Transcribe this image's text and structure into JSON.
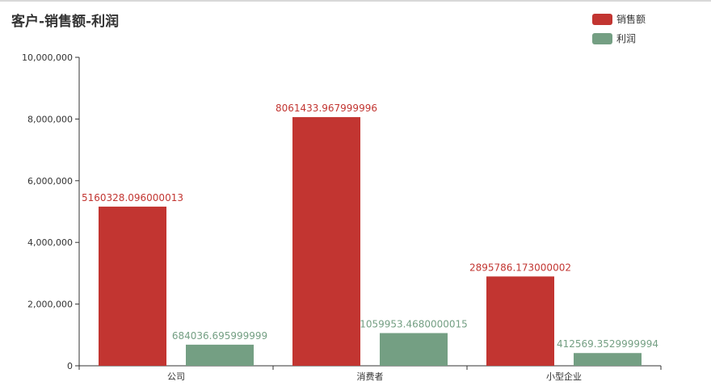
{
  "chart_data": {
    "type": "bar",
    "title": "客户-销售额-利润",
    "categories": [
      "公司",
      "消费者",
      "小型企业"
    ],
    "series": [
      {
        "name": "销售额",
        "color": "#c23531",
        "values": [
          5160328.096000013,
          8061433.967999996,
          2895786.173000002
        ],
        "labels": [
          "5160328.096000013",
          "8061433.967999996",
          "2895786.173000002"
        ]
      },
      {
        "name": "利润",
        "color": "#749f83",
        "values": [
          684036.695999999,
          1059953.4680000015,
          412569.3529999994
        ],
        "labels": [
          "684036.695999999",
          "1059953.4680000015",
          "412569.3529999994"
        ]
      }
    ],
    "ylim": [
      0,
      10000000
    ],
    "yticks": [
      "0",
      "2,000,000",
      "4,000,000",
      "6,000,000",
      "8,000,000",
      "10,000,000"
    ],
    "legend_position": "top-right",
    "grid": false
  }
}
